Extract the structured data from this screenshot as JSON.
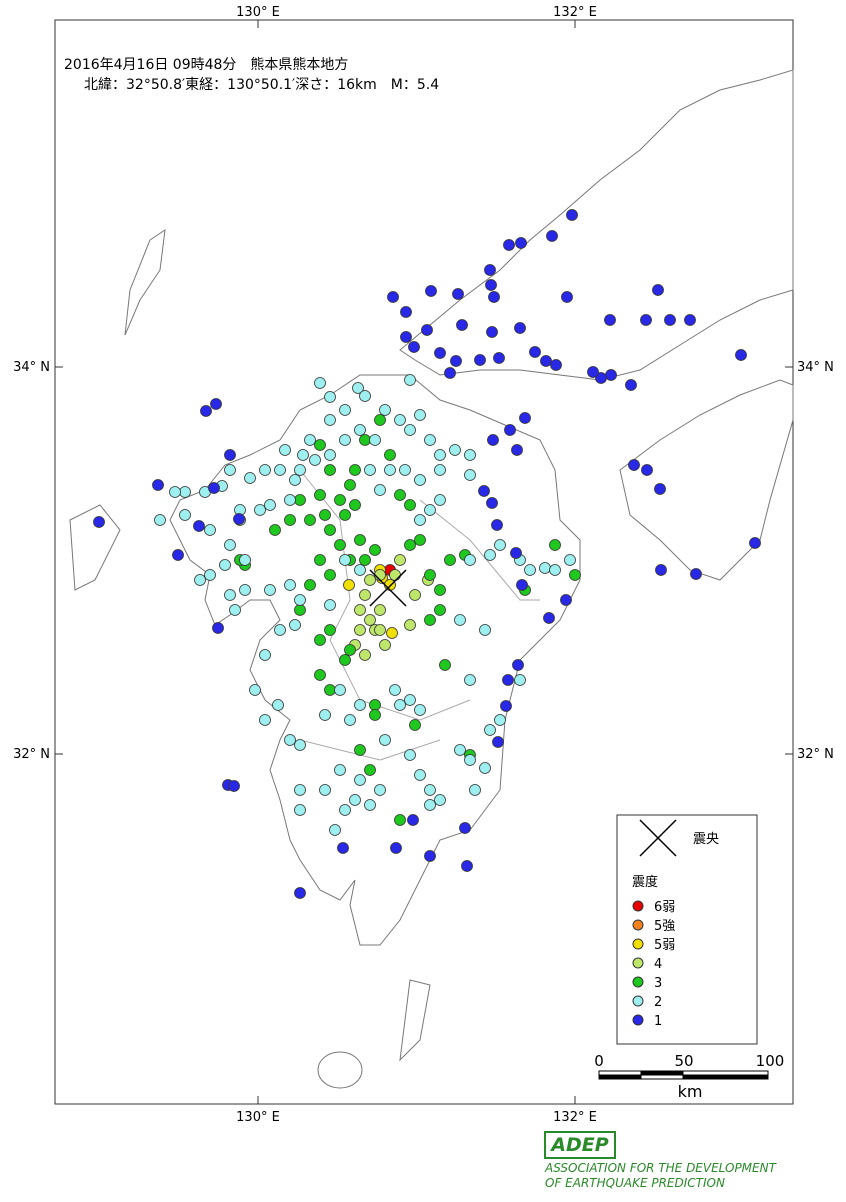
{
  "header": {
    "line1": "2016年4月16日 09時48分　熊本県熊本地方",
    "line2": "北緯：32°50.8′東経：130°50.1′深さ：16km　M：5.4"
  },
  "graticule": {
    "lon": [
      "130° E",
      "132° E"
    ],
    "lat": [
      "34° N",
      "32° N"
    ]
  },
  "legend": {
    "epicenter": "震央",
    "title": "震度",
    "items": [
      {
        "label": "6弱",
        "color": "#e60000"
      },
      {
        "label": "5強",
        "color": "#f08020"
      },
      {
        "label": "5弱",
        "color": "#f0e000"
      },
      {
        "label": "4",
        "color": "#bde66a"
      },
      {
        "label": "3",
        "color": "#1ec81e"
      },
      {
        "label": "2",
        "color": "#9ef0f0"
      },
      {
        "label": "1",
        "color": "#2828e6"
      }
    ]
  },
  "scale": {
    "ticks": [
      "0",
      "50",
      "100"
    ],
    "unit": "km"
  },
  "logo": {
    "mark": "ADEP",
    "line1": "ASSOCIATION FOR THE DEVELOPMENT",
    "line2": "OF EARTHQUAKE PREDICTION"
  }
}
